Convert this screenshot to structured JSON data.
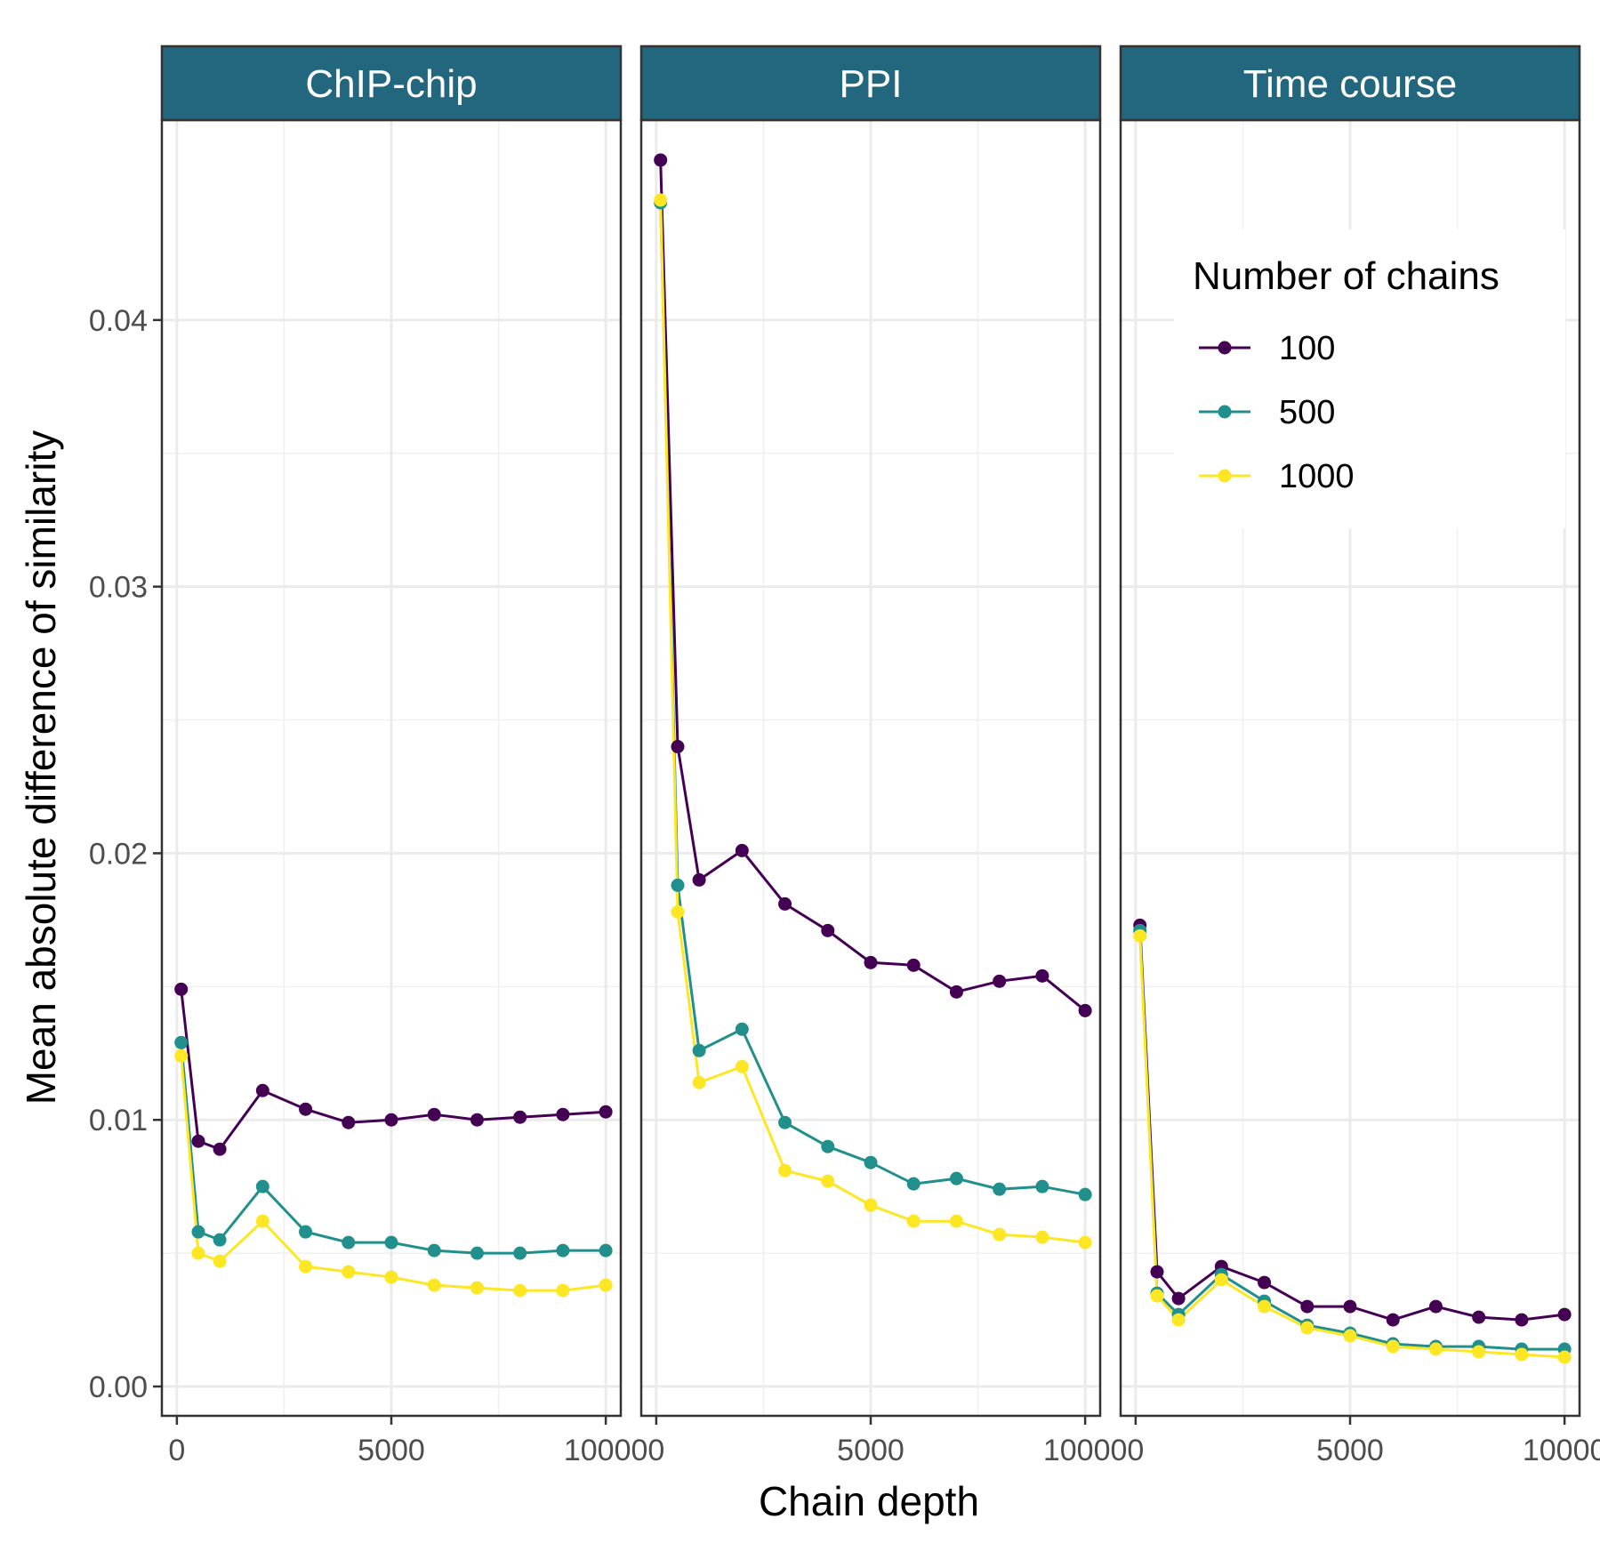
{
  "chart_data": {
    "type": "line",
    "xlabel": "Chain depth",
    "ylabel": "Mean absolute difference of similarity",
    "xlim": [
      -350,
      10350
    ],
    "ylim": [
      -0.0011,
      0.0475
    ],
    "x_ticks": [
      0,
      5000,
      10000
    ],
    "x_tick_labels": [
      "0",
      "5000",
      "10000"
    ],
    "y_ticks": [
      0.0,
      0.01,
      0.02,
      0.03,
      0.04
    ],
    "y_tick_labels": [
      "0.00",
      "0.01",
      "0.02",
      "0.03",
      "0.04"
    ],
    "grid": true,
    "legend": {
      "title": "Number of chains",
      "placement": "inside-top-right",
      "entries": [
        "100",
        "500",
        "1000"
      ]
    },
    "series_colors": {
      "100": "#440154",
      "500": "#21908c",
      "1000": "#fde725"
    },
    "strip_color": "#22677d",
    "panels": [
      {
        "name": "ChIP-chip",
        "x": [
          100,
          500,
          1000,
          2000,
          3000,
          4000,
          5000,
          6000,
          7000,
          8000,
          9000,
          10000
        ],
        "series": [
          {
            "name": "100",
            "values": [
              0.0149,
              0.0092,
              0.0089,
              0.0111,
              0.0104,
              0.0099,
              0.01,
              0.0102,
              0.01,
              0.0101,
              0.0102,
              0.0103
            ]
          },
          {
            "name": "500",
            "values": [
              0.0129,
              0.0058,
              0.0055,
              0.0075,
              0.0058,
              0.0054,
              0.0054,
              0.0051,
              0.005,
              0.005,
              0.0051,
              0.0051
            ]
          },
          {
            "name": "1000",
            "values": [
              0.0124,
              0.005,
              0.0047,
              0.0062,
              0.0045,
              0.0043,
              0.0041,
              0.0038,
              0.0037,
              0.0036,
              0.0036,
              0.0038
            ]
          }
        ]
      },
      {
        "name": "PPI",
        "x": [
          100,
          500,
          1000,
          2000,
          3000,
          4000,
          5000,
          6000,
          7000,
          8000,
          9000,
          10000
        ],
        "series": [
          {
            "name": "100",
            "values": [
              0.046,
              0.024,
              0.019,
              0.0201,
              0.0181,
              0.0171,
              0.0159,
              0.0158,
              0.0148,
              0.0152,
              0.0154,
              0.0141
            ]
          },
          {
            "name": "500",
            "values": [
              0.0444,
              0.0188,
              0.0126,
              0.0134,
              0.0099,
              0.009,
              0.0084,
              0.0076,
              0.0078,
              0.0074,
              0.0075,
              0.0072
            ]
          },
          {
            "name": "1000",
            "values": [
              0.0445,
              0.0178,
              0.0114,
              0.012,
              0.0081,
              0.0077,
              0.0068,
              0.0062,
              0.0062,
              0.0057,
              0.0056,
              0.0054
            ]
          }
        ]
      },
      {
        "name": "Time course",
        "x": [
          100,
          500,
          1000,
          2000,
          3000,
          4000,
          5000,
          6000,
          7000,
          8000,
          9000,
          10000
        ],
        "series": [
          {
            "name": "100",
            "values": [
              0.0173,
              0.0043,
              0.0033,
              0.0045,
              0.0039,
              0.003,
              0.003,
              0.0025,
              0.003,
              0.0026,
              0.0025,
              0.0027
            ]
          },
          {
            "name": "500",
            "values": [
              0.0171,
              0.0035,
              0.0027,
              0.0042,
              0.0032,
              0.0023,
              0.002,
              0.0016,
              0.0015,
              0.0015,
              0.0014,
              0.0014
            ]
          },
          {
            "name": "1000",
            "values": [
              0.0169,
              0.0034,
              0.0025,
              0.004,
              0.003,
              0.0022,
              0.0019,
              0.0015,
              0.0014,
              0.0013,
              0.0012,
              0.0011
            ]
          }
        ]
      }
    ]
  }
}
